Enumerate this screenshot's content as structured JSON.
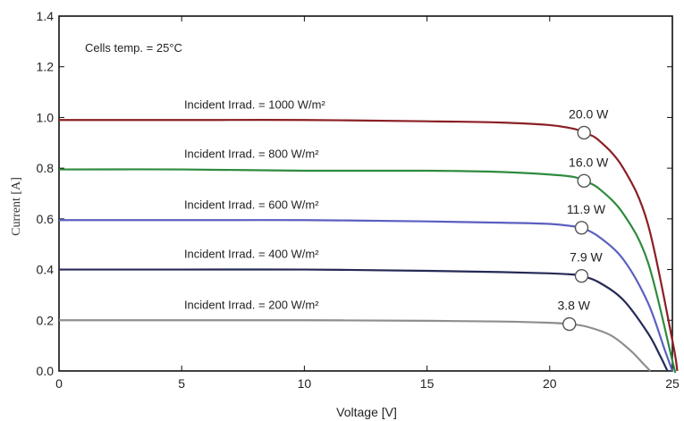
{
  "chart_data": {
    "type": "line",
    "xlabel": "Voltage [V]",
    "ylabel": "Current [A]",
    "xlim": [
      0,
      25
    ],
    "ylim": [
      0,
      1.4
    ],
    "x_ticks": [
      "0",
      "5",
      "10",
      "15",
      "20",
      "25"
    ],
    "y_ticks": [
      "0.0",
      "0.2",
      "0.4",
      "0.6",
      "0.8",
      "1.0",
      "1.2",
      "1.4"
    ],
    "grid": false,
    "note": "Cells temp. = 25°C",
    "series": [
      {
        "name": "Incident Irrad. = 1000 W/m²",
        "color": "#8b1f24",
        "x": [
          0,
          5,
          10,
          15,
          18,
          20,
          21,
          21.4,
          22,
          23,
          24,
          25,
          25.2
        ],
        "y": [
          0.99,
          0.99,
          0.99,
          0.985,
          0.98,
          0.97,
          0.955,
          0.94,
          0.91,
          0.8,
          0.58,
          0.12,
          0.0
        ],
        "mpp": {
          "x": 21.4,
          "y": 0.94,
          "label": "20.0 W"
        }
      },
      {
        "name": "Incident Irrad. = 800 W/m²",
        "color": "#2e8b3e",
        "x": [
          0,
          5,
          10,
          15,
          18,
          20,
          21,
          21.4,
          22,
          23,
          24,
          25,
          25.1
        ],
        "y": [
          0.795,
          0.795,
          0.79,
          0.79,
          0.785,
          0.775,
          0.765,
          0.75,
          0.72,
          0.62,
          0.43,
          0.04,
          0.0
        ],
        "mpp": {
          "x": 21.4,
          "y": 0.75,
          "label": "16.0 W"
        }
      },
      {
        "name": "Incident Irrad. = 600 W/m²",
        "color": "#5b5fc0",
        "x": [
          0,
          5,
          10,
          15,
          18,
          20,
          21,
          21.3,
          22,
          23,
          24,
          24.7,
          25.0
        ],
        "y": [
          0.595,
          0.595,
          0.595,
          0.59,
          0.585,
          0.58,
          0.57,
          0.565,
          0.53,
          0.44,
          0.27,
          0.08,
          0.0
        ],
        "mpp": {
          "x": 21.3,
          "y": 0.565,
          "label": "11.9 W"
        }
      },
      {
        "name": "Incident Irrad. = 400 W/m²",
        "color": "#252a55",
        "x": [
          0,
          5,
          10,
          15,
          18,
          20,
          21,
          21.3,
          22,
          23,
          24,
          24.5,
          24.8
        ],
        "y": [
          0.4,
          0.4,
          0.4,
          0.395,
          0.39,
          0.385,
          0.38,
          0.375,
          0.35,
          0.28,
          0.15,
          0.06,
          0.0
        ],
        "mpp": {
          "x": 21.3,
          "y": 0.375,
          "label": "7.9 W"
        }
      },
      {
        "name": "Incident Irrad. = 200 W/m²",
        "color": "#8e8e8e",
        "x": [
          0,
          5,
          10,
          15,
          18,
          20,
          20.8,
          21.5,
          22.5,
          23.3,
          23.8,
          24.1
        ],
        "y": [
          0.2,
          0.2,
          0.2,
          0.198,
          0.195,
          0.19,
          0.185,
          0.175,
          0.14,
          0.08,
          0.03,
          0.0
        ],
        "mpp": {
          "x": 20.8,
          "y": 0.185,
          "label": "3.8 W"
        }
      }
    ]
  }
}
